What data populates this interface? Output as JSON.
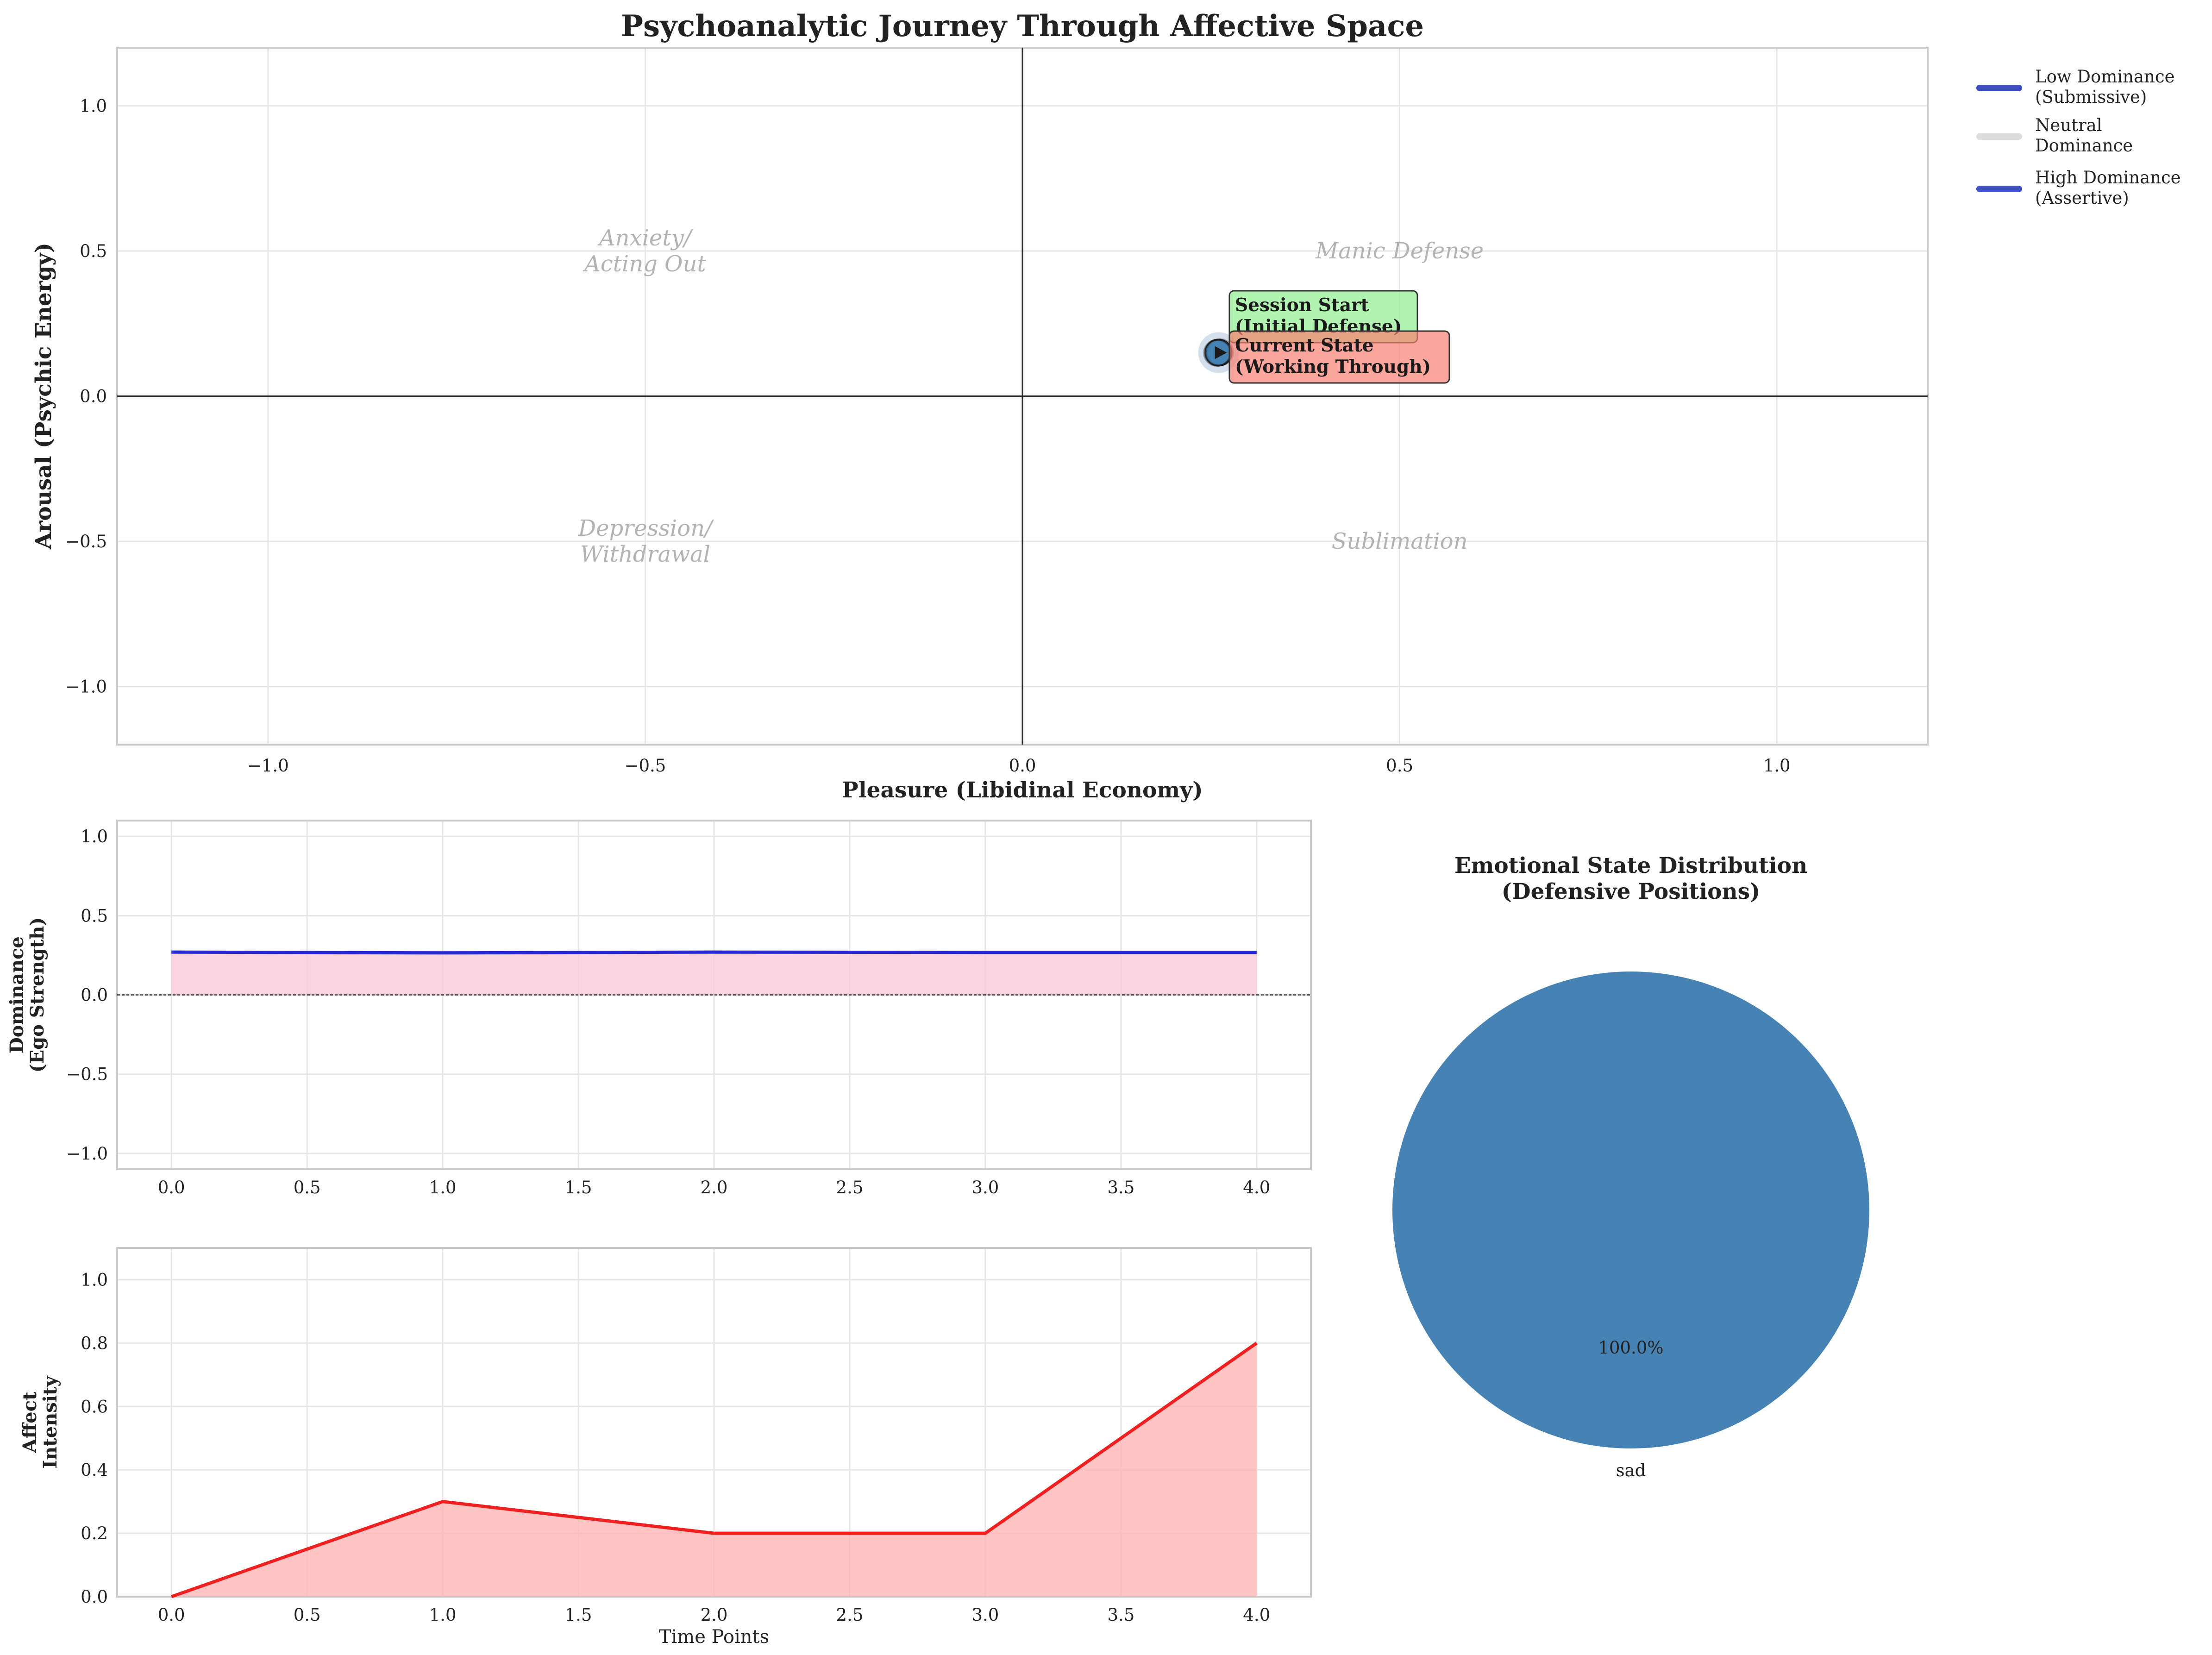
{
  "chart_data": [
    {
      "type": "line",
      "title": "Psychoanalytic Journey Through Affective Space",
      "xlabel": "Pleasure (Libidinal Economy)",
      "ylabel": "Arousal (Psychic Energy)",
      "xlim": [
        -1.2,
        1.2
      ],
      "ylim": [
        -1.2,
        1.2
      ],
      "xticks": [
        -1.0,
        -0.5,
        0.0,
        0.5,
        1.0
      ],
      "yticks": [
        -1.0,
        -0.5,
        0.0,
        0.5,
        1.0
      ],
      "grid": true,
      "trajectory": {
        "x": [
          0.26,
          0.262,
          0.258,
          0.26,
          0.259
        ],
        "y": [
          0.15,
          0.151,
          0.149,
          0.15,
          0.15
        ]
      },
      "quadrant_labels": [
        {
          "text": "Anxiety/\nActing Out",
          "x": -0.5,
          "y": 0.5
        },
        {
          "text": "Manic Defense",
          "x": 0.5,
          "y": 0.5
        },
        {
          "text": "Depression/\nWithdrawal",
          "x": -0.5,
          "y": -0.5
        },
        {
          "text": "Sublimation",
          "x": 0.5,
          "y": -0.5
        }
      ],
      "annotations": [
        {
          "text": "Session Start\n(Initial Defense)",
          "color": "#90ee90"
        },
        {
          "text": "Current State\n(Working Through)",
          "color": "#fa8072"
        }
      ],
      "legend": {
        "placement": "outside-top-right",
        "entries": [
          {
            "label": "Low Dominance\n(Submissive)",
            "color": "#3f4fc0"
          },
          {
            "label": "Neutral\nDominance",
            "color": "#dcdcdc"
          },
          {
            "label": "High Dominance\n(Assertive)",
            "color": "#3f4fc0"
          }
        ]
      }
    },
    {
      "type": "area",
      "title": "",
      "xlabel": "",
      "ylabel": "Dominance\n(Ego Strength)",
      "x": [
        0,
        1,
        2,
        3,
        4
      ],
      "values": [
        0.27,
        0.265,
        0.27,
        0.268,
        0.268
      ],
      "xlim": [
        -0.2,
        4.2
      ],
      "ylim": [
        -1.1,
        1.1
      ],
      "xticks": [
        0.0,
        0.5,
        1.0,
        1.5,
        2.0,
        2.5,
        3.0,
        3.5,
        4.0
      ],
      "yticks": [
        -1.0,
        -0.5,
        0.0,
        0.5,
        1.0
      ],
      "line_color": "#2727d8",
      "fill_color": "#f8c5d3",
      "grid": true
    },
    {
      "type": "area",
      "title": "",
      "xlabel": "Time Points",
      "ylabel": "Affect\nIntensity",
      "x": [
        0,
        1,
        2,
        3,
        4
      ],
      "values": [
        0.0,
        0.3,
        0.2,
        0.2,
        0.8
      ],
      "xlim": [
        -0.2,
        4.2
      ],
      "ylim": [
        0.0,
        1.1
      ],
      "xticks": [
        0.0,
        0.5,
        1.0,
        1.5,
        2.0,
        2.5,
        3.0,
        3.5,
        4.0
      ],
      "yticks": [
        0.0,
        0.2,
        0.4,
        0.6,
        0.8,
        1.0
      ],
      "line_color": "#f02020",
      "fill_color": "#ffb0b0",
      "grid": true
    },
    {
      "type": "pie",
      "title": "Emotional State Distribution\n(Defensive Positions)",
      "categories": [
        "sad"
      ],
      "values": [
        100.0
      ],
      "pct_labels": [
        "100.0%"
      ],
      "colors": [
        "#4682b4"
      ]
    }
  ]
}
